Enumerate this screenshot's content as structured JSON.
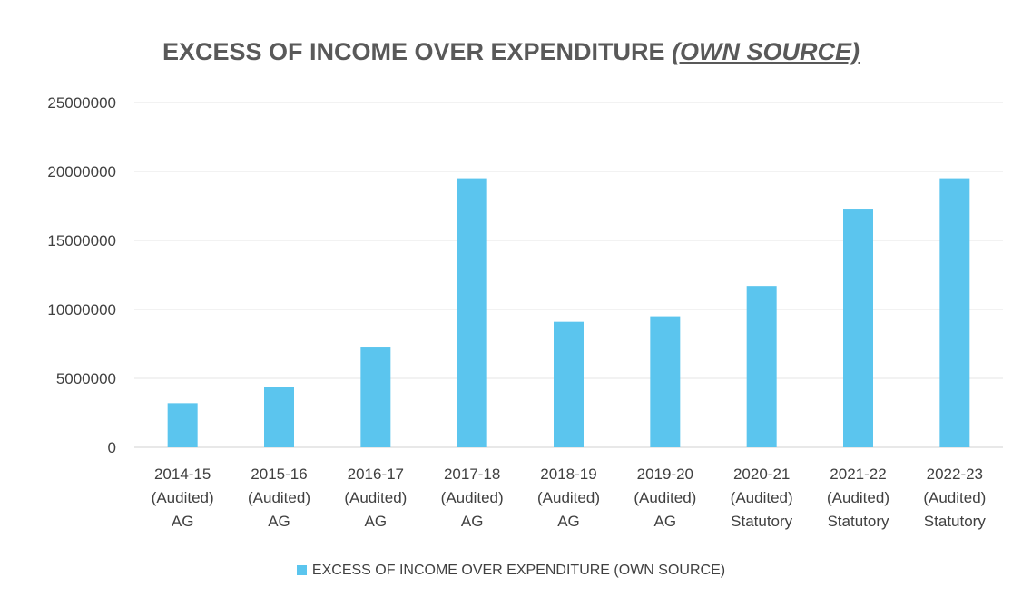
{
  "chart_data": {
    "type": "bar",
    "title": "EXCESS OF INCOME OVER EXPENDITURE",
    "title_emphasis": "(OWN SOURCE)",
    "xlabel": "",
    "ylabel": "",
    "ylim": [
      0,
      25000000
    ],
    "yticks": [
      "25000000",
      "20000000",
      "15000000",
      "10000000",
      "5000000",
      "0"
    ],
    "grid": true,
    "legend_position": "bottom",
    "categories": [
      [
        "2014-15",
        "(Audited)",
        "AG"
      ],
      [
        "2015-16",
        "(Audited)",
        "AG"
      ],
      [
        "2016-17",
        "(Audited)",
        "AG"
      ],
      [
        "2017-18",
        "(Audited)",
        "AG"
      ],
      [
        "2018-19",
        "(Audited)",
        "AG"
      ],
      [
        "2019-20",
        "(Audited)",
        "AG"
      ],
      [
        "2020-21",
        "(Audited)",
        "Statutory"
      ],
      [
        "2021-22",
        "(Audited)",
        "Statutory"
      ],
      [
        "2022-23",
        "(Audited)",
        "Statutory"
      ]
    ],
    "series": [
      {
        "name": "EXCESS OF INCOME OVER EXPENDITURE (OWN SOURCE)",
        "color": "#5BC5EE",
        "values": [
          3200000,
          4400000,
          7300000,
          19500000,
          9100000,
          9500000,
          11700000,
          17300000,
          19500000
        ]
      }
    ]
  }
}
